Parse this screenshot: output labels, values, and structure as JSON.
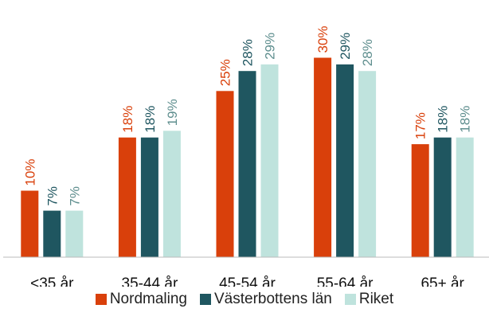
{
  "chart_data": {
    "type": "bar",
    "categories": [
      "<35 år",
      "35-44 år",
      "45-54 år",
      "55-64 år",
      "65+ år"
    ],
    "series": [
      {
        "name": "Nordmaling",
        "values": [
          10,
          18,
          25,
          30,
          17
        ],
        "labels": [
          "10%",
          "18%",
          "25%",
          "30%",
          "17%"
        ],
        "color": "#D9400B",
        "label_color": "#D9400B"
      },
      {
        "name": "Västerbottens län",
        "values": [
          7,
          18,
          28,
          29,
          18
        ],
        "labels": [
          "7%",
          "18%",
          "28%",
          "29%",
          "18%"
        ],
        "color": "#1F5660",
        "label_color": "#1F5660"
      },
      {
        "name": "Riket",
        "values": [
          7,
          19,
          29,
          28,
          18
        ],
        "labels": [
          "7%",
          "19%",
          "29%",
          "28%",
          "18%"
        ],
        "color": "#BFE3DD",
        "label_color": "#5E8E8E"
      }
    ],
    "title": "",
    "xlabel": "",
    "ylabel": "",
    "ylim": [
      0,
      35
    ],
    "grid": false,
    "legend": "bottom",
    "axis_color": "#BBBBBB"
  }
}
